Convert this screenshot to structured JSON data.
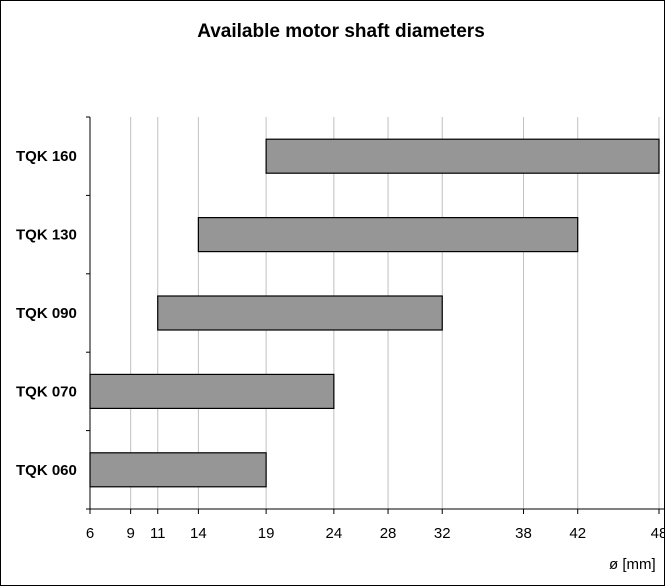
{
  "chart_data": {
    "type": "bar",
    "orientation": "horizontal-range",
    "title": "Available motor shaft diameters",
    "xlabel": "ø [mm]",
    "ylabel": "",
    "xlim": [
      6,
      48
    ],
    "x_ticks": [
      6,
      9,
      11,
      14,
      19,
      24,
      28,
      32,
      38,
      42,
      48
    ],
    "grid": "vertical",
    "legend": "none",
    "categories": [
      "TQK 160",
      "TQK 130",
      "TQK 090",
      "TQK 070",
      "TQK 060"
    ],
    "ranges": [
      {
        "category": "TQK 160",
        "min": 19,
        "max": 48
      },
      {
        "category": "TQK 130",
        "min": 14,
        "max": 42
      },
      {
        "category": "TQK 090",
        "min": 11,
        "max": 32
      },
      {
        "category": "TQK 070",
        "min": 6,
        "max": 24
      },
      {
        "category": "TQK 060",
        "min": 6,
        "max": 19
      }
    ],
    "bar_color": "#969696",
    "bar_border_color": "#000000",
    "grid_color": "#c0c0c0"
  }
}
